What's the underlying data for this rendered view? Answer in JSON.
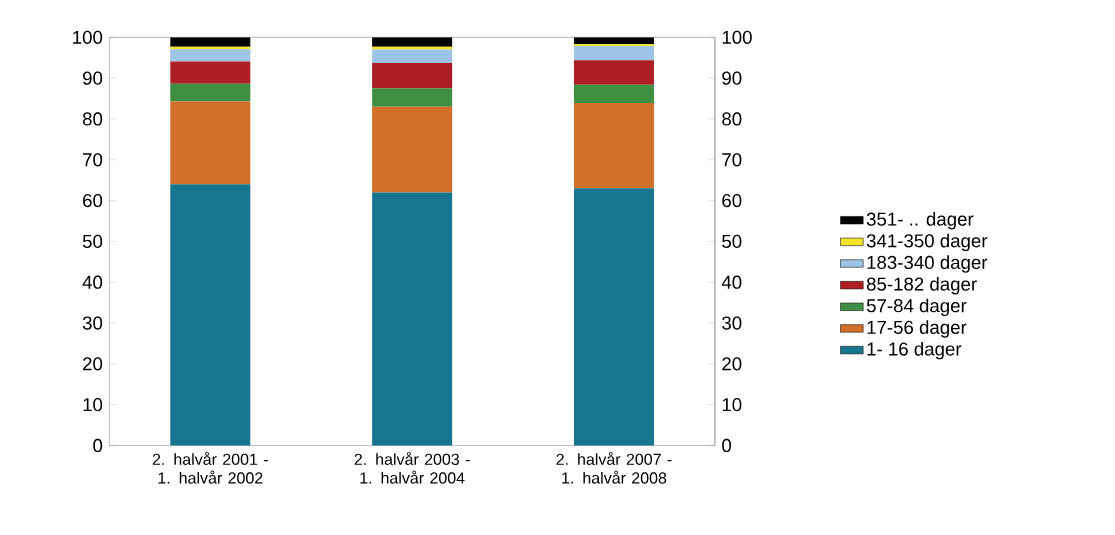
{
  "chart_data": {
    "type": "bar",
    "stacked": true,
    "categories": [
      "2. halvår 2001 - 1. halvår 2002",
      "2. halvår 2003 - 1. halvår 2004",
      "2. halvår 2007 - 1. halvår 2008"
    ],
    "series": [
      {
        "name": "1- 16 dager",
        "color": "#17758f",
        "values": [
          64.0,
          62.0,
          63.0
        ]
      },
      {
        "name": "17-56 dager",
        "color": "#d2702a",
        "values": [
          20.3,
          21.0,
          20.9
        ]
      },
      {
        "name": "57-84 dager",
        "color": "#3e8f42",
        "values": [
          4.3,
          4.5,
          4.5
        ]
      },
      {
        "name": "85-182 dager",
        "color": "#ae1f24",
        "values": [
          5.5,
          6.2,
          6.0
        ]
      },
      {
        "name": "183-340 dager",
        "color": "#9dc3e6",
        "values": [
          3.0,
          3.3,
          3.5
        ]
      },
      {
        "name": "341-350 dager",
        "color": "#f5e52a",
        "values": [
          0.6,
          0.7,
          0.4
        ]
      },
      {
        "name": "351- .. dager",
        "color": "#000000",
        "values": [
          2.3,
          2.3,
          1.7
        ]
      }
    ],
    "ylim": [
      0,
      100
    ],
    "yticks": [
      0,
      10,
      20,
      30,
      40,
      50,
      60,
      70,
      80,
      90,
      100
    ],
    "y2lim": [
      0,
      100
    ],
    "y2ticks": [
      0,
      10,
      20,
      30,
      40,
      50,
      60,
      70,
      80,
      90,
      100
    ],
    "legend": "right",
    "grid": false
  }
}
